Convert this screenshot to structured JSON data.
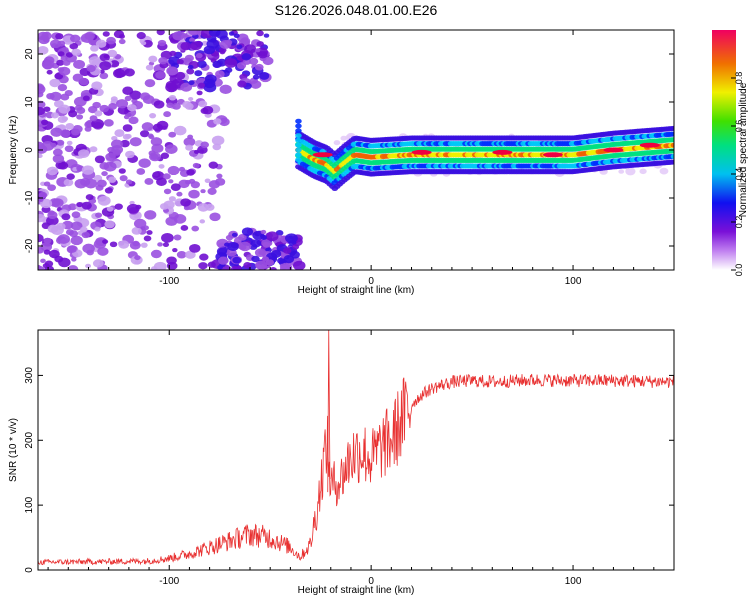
{
  "title": "S126.2026.048.01.00.E26",
  "chart_data": [
    {
      "type": "heatmap",
      "xlabel": "Height of straight line (km)",
      "ylabel": "Frequency (Hz)",
      "xlim": [
        -165,
        150
      ],
      "ylim": [
        -25,
        25
      ],
      "xticks": [
        -100,
        0,
        100
      ],
      "yticks": [
        -20,
        -10,
        0,
        10,
        20
      ],
      "colorbar": {
        "label": "Normalized spectral amplitude",
        "range": [
          0,
          1
        ],
        "ticks": [
          0.0,
          0.2,
          0.4,
          0.6,
          0.8
        ]
      },
      "ridge": {
        "x": [
          -36,
          -32,
          -28,
          -22,
          -18,
          -14,
          -8,
          0,
          20,
          60,
          100,
          120,
          150
        ],
        "y": [
          0,
          -1,
          -2,
          -3,
          -4.5,
          -3,
          -1,
          -1.5,
          -1,
          -1,
          -1,
          0,
          1
        ]
      }
    },
    {
      "type": "line",
      "xlabel": "Height of straight line (km)",
      "ylabel": "SNR (10 * v/v)",
      "xlim": [
        -165,
        150
      ],
      "ylim": [
        0,
        370
      ],
      "xticks": [
        -100,
        0,
        100
      ],
      "yticks": [
        0,
        100,
        200,
        300
      ],
      "series": [
        {
          "name": "SNR",
          "color": "#e83030",
          "x": [
            -165,
            -130,
            -110,
            -100,
            -90,
            -80,
            -70,
            -60,
            -50,
            -40,
            -35,
            -30,
            -26,
            -22,
            -20,
            -15,
            -10,
            -5,
            0,
            5,
            10,
            15,
            20,
            25,
            30,
            40,
            50,
            60,
            80,
            100,
            120,
            150
          ],
          "y": [
            12,
            13,
            14,
            18,
            25,
            35,
            45,
            55,
            50,
            35,
            20,
            40,
            110,
            200,
            130,
            140,
            175,
            185,
            170,
            190,
            200,
            230,
            255,
            270,
            280,
            290,
            292,
            290,
            293,
            292,
            292,
            290
          ]
        }
      ]
    }
  ]
}
